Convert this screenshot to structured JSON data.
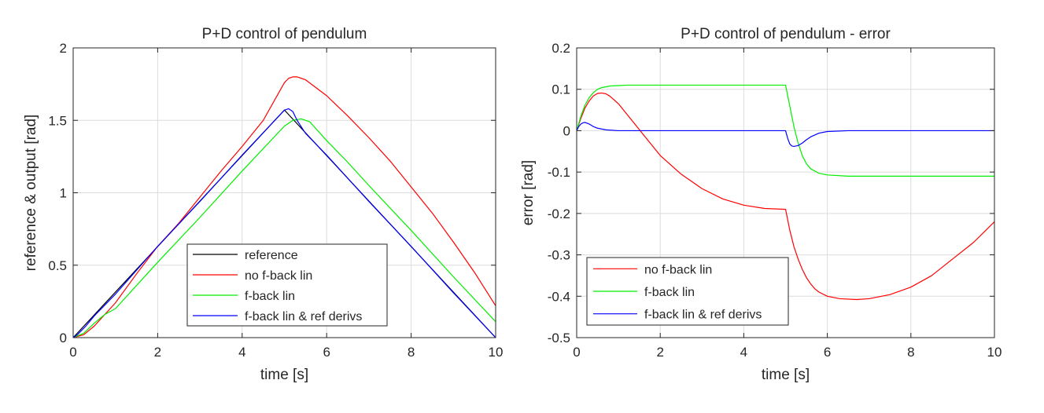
{
  "chart_data": [
    {
      "type": "line",
      "title": "P+D control of pendulum",
      "xlabel": "time [s]",
      "ylabel": "reference & output [rad]",
      "xlim": [
        0,
        10
      ],
      "ylim": [
        0,
        2
      ],
      "xticks": [
        0,
        2,
        4,
        6,
        8,
        10
      ],
      "xtick_labels": [
        "0",
        "2",
        "4",
        "6",
        "8",
        "10"
      ],
      "yticks": [
        0,
        0.5,
        1,
        1.5,
        2
      ],
      "ytick_labels": [
        "0",
        "0.5",
        "1",
        "1.5",
        "2"
      ],
      "grid": true,
      "legend": "bottom-center",
      "series": [
        {
          "name": "reference",
          "color": "#000000",
          "x": [
            0,
            5,
            10
          ],
          "y": [
            0,
            1.571,
            0
          ]
        },
        {
          "name": "no f-back lin",
          "color": "#ff0000",
          "x": [
            0,
            0.25,
            0.5,
            0.75,
            1,
            1.5,
            2,
            2.5,
            3,
            3.5,
            4,
            4.5,
            5,
            5.1,
            5.2,
            5.3,
            5.5,
            6,
            6.5,
            7,
            7.5,
            8,
            8.5,
            9,
            9.5,
            10
          ],
          "y": [
            0,
            0.02,
            0.08,
            0.16,
            0.24,
            0.44,
            0.63,
            0.79,
            0.97,
            1.15,
            1.32,
            1.5,
            1.76,
            1.79,
            1.8,
            1.8,
            1.78,
            1.67,
            1.53,
            1.38,
            1.22,
            1.04,
            0.86,
            0.66,
            0.45,
            0.22
          ]
        },
        {
          "name": "f-back lin",
          "color": "#00ee00",
          "x": [
            0,
            0.25,
            0.5,
            0.75,
            1,
            1.5,
            2,
            3,
            4,
            5,
            5.2,
            5.4,
            5.6,
            6,
            6.5,
            7,
            8,
            9,
            10
          ],
          "y": [
            0,
            0.03,
            0.1,
            0.16,
            0.2,
            0.36,
            0.52,
            0.83,
            1.15,
            1.46,
            1.5,
            1.51,
            1.49,
            1.36,
            1.21,
            1.05,
            0.74,
            0.42,
            0.11
          ]
        },
        {
          "name": "f-back lin & ref derivs",
          "color": "#0000ff",
          "x": [
            0,
            0.1,
            0.2,
            0.3,
            0.5,
            1,
            2,
            3,
            4,
            5,
            5.1,
            5.2,
            5.3,
            5.5,
            6,
            7,
            8,
            9,
            10
          ],
          "y": [
            0,
            0.02,
            0.05,
            0.08,
            0.15,
            0.3,
            0.63,
            0.94,
            1.26,
            1.57,
            1.58,
            1.56,
            1.5,
            1.41,
            1.26,
            0.94,
            0.63,
            0.31,
            0
          ]
        }
      ]
    },
    {
      "type": "line",
      "title": "P+D control of pendulum - error",
      "xlabel": "time [s]",
      "ylabel": "error [rad]",
      "xlim": [
        0,
        10
      ],
      "ylim": [
        -0.5,
        0.2
      ],
      "xticks": [
        0,
        2,
        4,
        6,
        8,
        10
      ],
      "xtick_labels": [
        "0",
        "2",
        "4",
        "6",
        "8",
        "10"
      ],
      "yticks": [
        -0.5,
        -0.4,
        -0.3,
        -0.2,
        -0.1,
        0,
        0.1,
        0.2
      ],
      "ytick_labels": [
        "-0.5",
        "-0.4",
        "-0.3",
        "-0.2",
        "-0.1",
        "0",
        "0.1",
        "0.2"
      ],
      "grid": true,
      "legend": "bottom-left",
      "series": [
        {
          "name": "no f-back lin",
          "color": "#ff0000",
          "x": [
            0,
            0.1,
            0.2,
            0.3,
            0.4,
            0.5,
            0.6,
            0.7,
            0.8,
            1,
            1.2,
            1.4,
            1.6,
            1.8,
            2,
            2.5,
            3,
            3.5,
            4,
            4.5,
            5,
            5.001,
            5.1,
            5.2,
            5.3,
            5.4,
            5.5,
            5.6,
            5.7,
            5.8,
            6,
            6.3,
            6.7,
            7,
            7.5,
            8,
            8.5,
            9,
            9.5,
            10
          ],
          "y": [
            0,
            0.03,
            0.055,
            0.072,
            0.084,
            0.09,
            0.091,
            0.089,
            0.083,
            0.065,
            0.04,
            0.015,
            -0.01,
            -0.035,
            -0.06,
            -0.105,
            -0.14,
            -0.165,
            -0.18,
            -0.188,
            -0.19,
            -0.19,
            -0.24,
            -0.28,
            -0.31,
            -0.335,
            -0.355,
            -0.37,
            -0.382,
            -0.39,
            -0.4,
            -0.406,
            -0.408,
            -0.406,
            -0.396,
            -0.378,
            -0.35,
            -0.31,
            -0.27,
            -0.22
          ]
        },
        {
          "name": "f-back lin",
          "color": "#00ee00",
          "x": [
            0,
            0.1,
            0.2,
            0.3,
            0.4,
            0.5,
            0.6,
            0.8,
            1,
            1.2,
            1.5,
            2,
            3,
            4,
            5,
            5.001,
            5.1,
            5.2,
            5.3,
            5.4,
            5.5,
            5.6,
            5.8,
            6,
            6.5,
            7,
            8,
            9,
            10
          ],
          "y": [
            0,
            0.035,
            0.062,
            0.08,
            0.092,
            0.1,
            0.104,
            0.108,
            0.109,
            0.11,
            0.11,
            0.11,
            0.11,
            0.11,
            0.11,
            0.11,
            0.06,
            0.01,
            -0.03,
            -0.06,
            -0.08,
            -0.092,
            -0.103,
            -0.107,
            -0.11,
            -0.11,
            -0.11,
            -0.11,
            -0.11
          ]
        },
        {
          "name": "f-back lin & ref derivs",
          "color": "#0000ff",
          "x": [
            0,
            0.05,
            0.1,
            0.15,
            0.2,
            0.3,
            0.4,
            0.5,
            0.7,
            1,
            1.5,
            2,
            3,
            4,
            5,
            5.05,
            5.1,
            5.15,
            5.2,
            5.3,
            5.4,
            5.5,
            5.6,
            5.8,
            6,
            6.5,
            7,
            8,
            9,
            10
          ],
          "y": [
            0,
            0.01,
            0.016,
            0.019,
            0.02,
            0.016,
            0.01,
            0.006,
            0.002,
            0,
            0,
            0,
            0,
            0,
            0,
            -0.018,
            -0.032,
            -0.037,
            -0.038,
            -0.036,
            -0.03,
            -0.022,
            -0.015,
            -0.006,
            -0.002,
            0,
            0,
            0,
            0,
            0
          ]
        }
      ]
    }
  ]
}
